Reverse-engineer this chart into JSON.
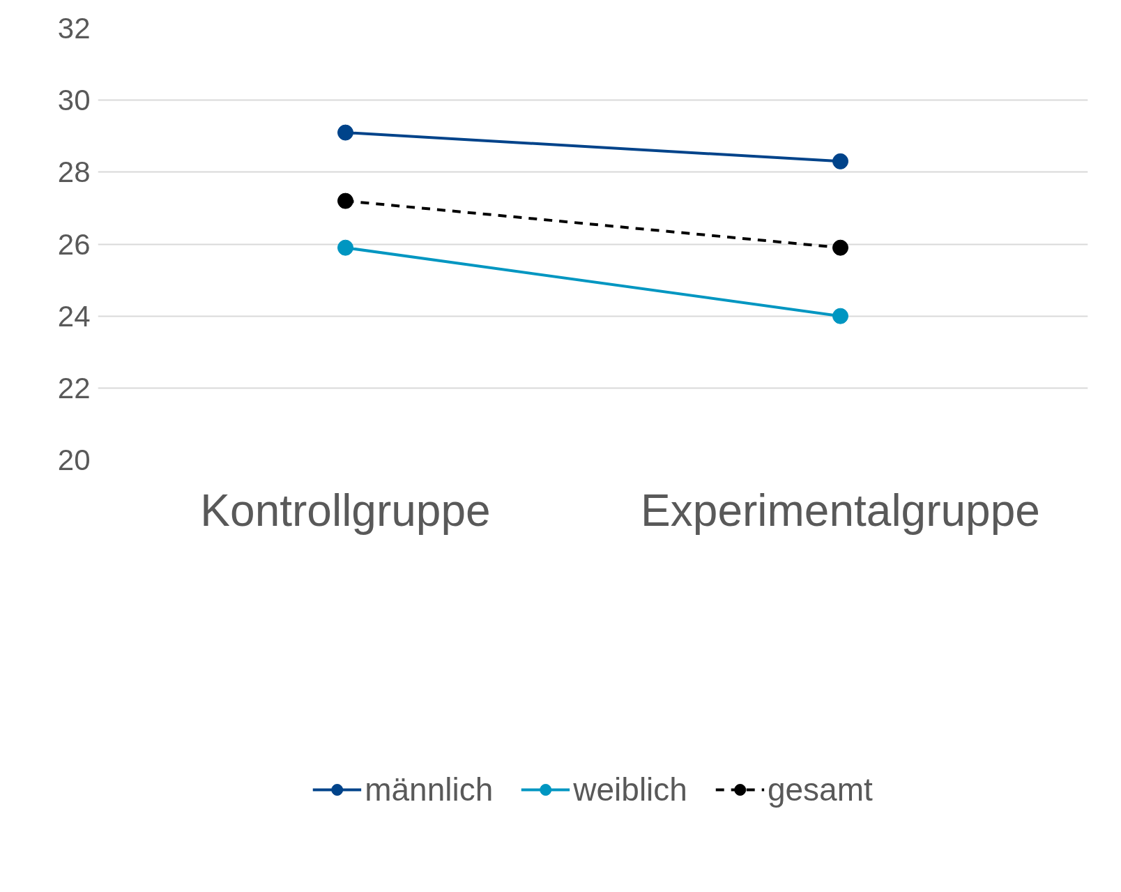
{
  "chart_data": {
    "type": "line",
    "categories": [
      "Kontrollgruppe",
      "Experimentalgruppe"
    ],
    "series": [
      {
        "name": "männlich",
        "color": "#00438a",
        "values": [
          29.1,
          28.3
        ],
        "line_style": "solid"
      },
      {
        "name": "weiblich",
        "color": "#0096c1",
        "values": [
          25.9,
          24.0
        ],
        "line_style": "solid"
      },
      {
        "name": "gesamt",
        "color": "#000000",
        "values": [
          27.2,
          25.9
        ],
        "line_style": "dashed"
      }
    ],
    "ylim": [
      20,
      32
    ],
    "yticks": [
      20,
      22,
      24,
      26,
      28,
      30,
      32
    ],
    "grid": "y",
    "legend": "bottom",
    "marker": "circle"
  }
}
